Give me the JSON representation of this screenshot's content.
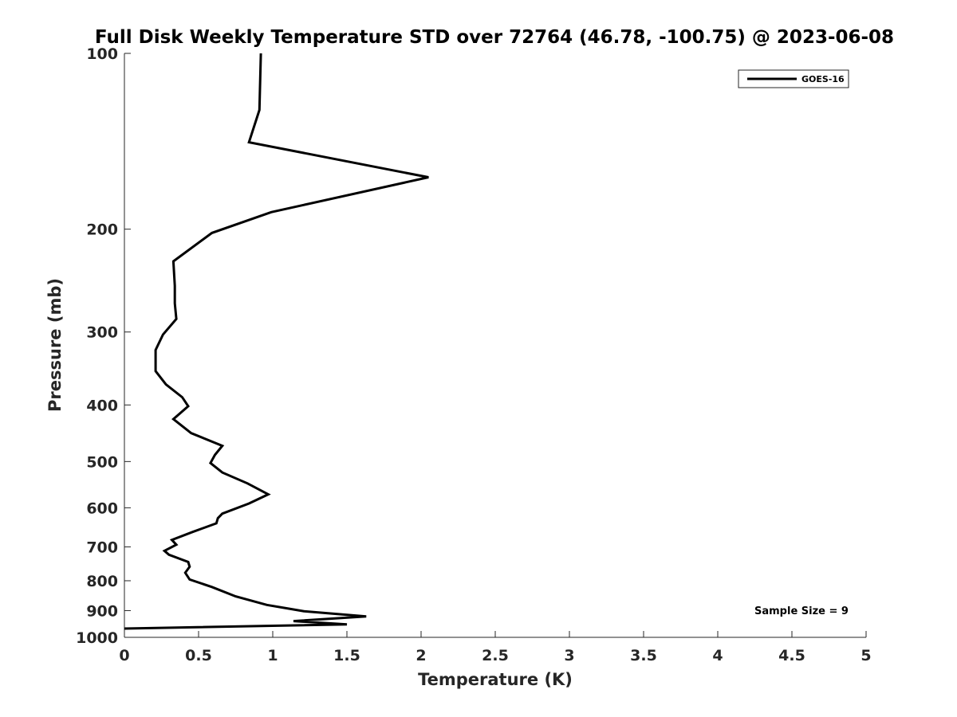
{
  "chart_data": {
    "type": "line",
    "title": "Full Disk Weekly Temperature STD over 72764 (46.78, -100.75) @ 2023-06-08",
    "xlabel": "Temperature (K)",
    "ylabel": "Pressure (mb)",
    "xlim": [
      0,
      5
    ],
    "ylim": [
      100,
      1000
    ],
    "y_scale": "log",
    "y_reversed": true,
    "x_ticks": [
      0,
      0.5,
      1,
      1.5,
      2,
      2.5,
      3,
      3.5,
      4,
      4.5,
      5
    ],
    "x_tick_labels": [
      "0",
      "0.5",
      "1",
      "1.5",
      "2",
      "2.5",
      "3",
      "3.5",
      "4",
      "4.5",
      "5"
    ],
    "y_ticks": [
      100,
      200,
      300,
      400,
      500,
      600,
      700,
      800,
      900,
      1000
    ],
    "y_tick_labels": [
      "100",
      "200",
      "300",
      "400",
      "500",
      "600",
      "700",
      "800",
      "900",
      "1000"
    ],
    "grid": false,
    "legend_position": "top-right",
    "series": [
      {
        "name": "GOES-16",
        "color": "#000000",
        "points": [
          [
            0.92,
            100
          ],
          [
            0.91,
            125
          ],
          [
            0.84,
            142
          ],
          [
            2.05,
            163
          ],
          [
            0.99,
            187
          ],
          [
            0.59,
            203
          ],
          [
            0.33,
            227
          ],
          [
            0.34,
            250
          ],
          [
            0.34,
            268
          ],
          [
            0.35,
            285
          ],
          [
            0.26,
            303
          ],
          [
            0.21,
            322
          ],
          [
            0.21,
            350
          ],
          [
            0.28,
            369
          ],
          [
            0.39,
            388
          ],
          [
            0.43,
            402
          ],
          [
            0.33,
            423
          ],
          [
            0.45,
            447
          ],
          [
            0.66,
            470
          ],
          [
            0.61,
            487
          ],
          [
            0.58,
            503
          ],
          [
            0.66,
            522
          ],
          [
            0.83,
            545
          ],
          [
            0.97,
            569
          ],
          [
            0.84,
            590
          ],
          [
            0.66,
            614
          ],
          [
            0.63,
            625
          ],
          [
            0.62,
            638
          ],
          [
            0.46,
            660
          ],
          [
            0.32,
            681
          ],
          [
            0.35,
            694
          ],
          [
            0.27,
            711
          ],
          [
            0.3,
            722
          ],
          [
            0.43,
            743
          ],
          [
            0.44,
            757
          ],
          [
            0.41,
            775
          ],
          [
            0.44,
            796
          ],
          [
            0.59,
            820
          ],
          [
            0.75,
            851
          ],
          [
            0.96,
            880
          ],
          [
            1.21,
            902
          ],
          [
            1.63,
            921
          ],
          [
            1.14,
            938
          ],
          [
            1.5,
            950
          ],
          [
            0.0,
            966
          ]
        ]
      }
    ],
    "annotations": [
      "Sample Size = 9"
    ]
  }
}
